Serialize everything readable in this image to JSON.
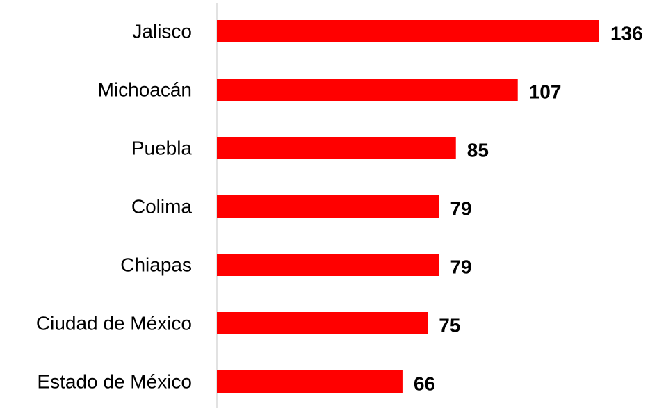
{
  "chart_data": {
    "type": "bar",
    "orientation": "horizontal",
    "title": "",
    "xlabel": "",
    "ylabel": "",
    "categories": [
      "Jalisco",
      "Michoacán",
      "Puebla",
      "Colima",
      "Chiapas",
      "Ciudad de México",
      "Estado de México"
    ],
    "series": [
      {
        "values": [
          136,
          107,
          85,
          79,
          79,
          75,
          66
        ]
      }
    ],
    "xlim": [
      0,
      136
    ],
    "grid": false,
    "legend": "none",
    "data_labels": true,
    "bar_color": "#FF0000",
    "axis_color": "#D9D9D9"
  }
}
